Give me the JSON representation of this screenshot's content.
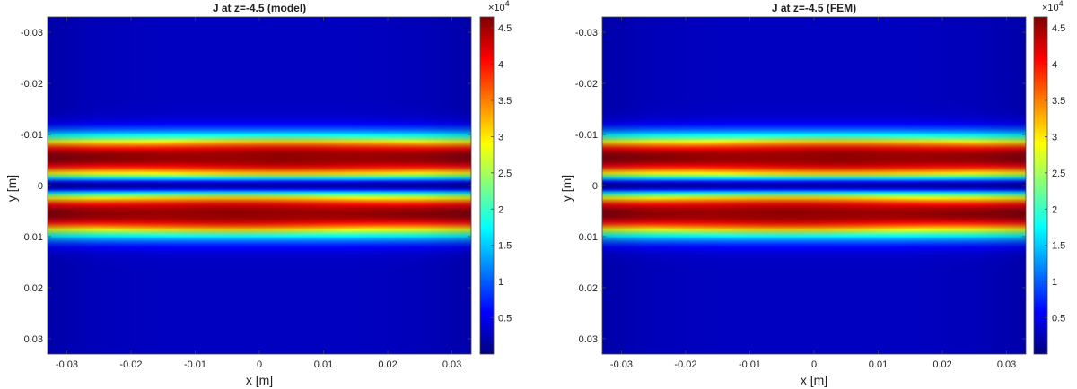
{
  "chart_data": [
    {
      "type": "heatmap",
      "title": "J at z=-4.5 (model)",
      "xlabel": "x [m]",
      "ylabel": "y [m]",
      "xlim": [
        -0.033,
        0.033
      ],
      "ylim": [
        -0.033,
        0.033
      ],
      "y_reversed": true,
      "x_ticks": [
        -0.03,
        -0.02,
        -0.01,
        0,
        0.01,
        0.02,
        0.03
      ],
      "x_tick_labels": [
        "-0.03",
        "-0.02",
        "-0.01",
        "0",
        "0.01",
        "0.02",
        "0.03"
      ],
      "y_ticks": [
        -0.03,
        -0.02,
        -0.01,
        0,
        0.01,
        0.02,
        0.03
      ],
      "y_tick_labels": [
        "-0.03",
        "-0.02",
        "-0.01",
        "0",
        "0.01",
        "0.02",
        "0.03"
      ],
      "colormap": "jet",
      "clim": [
        0,
        46500
      ],
      "colorbar_ticks": [
        5000,
        10000,
        15000,
        20000,
        25000,
        30000,
        35000,
        40000,
        45000
      ],
      "colorbar_tick_labels": [
        "0.5",
        "1",
        "1.5",
        "2",
        "2.5",
        "3",
        "3.5",
        "4",
        "4.5"
      ],
      "colorbar_multiplier_base": "×10",
      "colorbar_multiplier_exp": "4",
      "band_profile": {
        "peak_value": 46000,
        "peak_y_offset": 0.0055,
        "band_width": 0.0042,
        "center_dip_value": 1500,
        "edge_value": 3000,
        "upper_band_peak_x": 0.004,
        "lower_band_peak_x": -0.004
      }
    },
    {
      "type": "heatmap",
      "title": "J at z=-4.5 (FEM)",
      "xlabel": "x [m]",
      "ylabel": "y [m]",
      "xlim": [
        -0.033,
        0.033
      ],
      "ylim": [
        -0.033,
        0.033
      ],
      "y_reversed": true,
      "x_ticks": [
        -0.03,
        -0.02,
        -0.01,
        0,
        0.01,
        0.02,
        0.03
      ],
      "x_tick_labels": [
        "-0.03",
        "-0.02",
        "-0.01",
        "0",
        "0.01",
        "0.02",
        "0.03"
      ],
      "y_ticks": [
        -0.03,
        -0.02,
        -0.01,
        0,
        0.01,
        0.02,
        0.03
      ],
      "y_tick_labels": [
        "-0.03",
        "-0.02",
        "-0.01",
        "0",
        "0.01",
        "0.02",
        "0.03"
      ],
      "colormap": "jet",
      "clim": [
        0,
        46500
      ],
      "colorbar_ticks": [
        5000,
        10000,
        15000,
        20000,
        25000,
        30000,
        35000,
        40000,
        45000
      ],
      "colorbar_tick_labels": [
        "0.5",
        "1",
        "1.5",
        "2",
        "2.5",
        "3",
        "3.5",
        "4",
        "4.5"
      ],
      "colorbar_multiplier_base": "×10",
      "colorbar_multiplier_exp": "4",
      "band_profile": {
        "peak_value": 46000,
        "peak_y_offset": 0.0055,
        "band_width": 0.0042,
        "center_dip_value": 1500,
        "edge_value": 3000,
        "upper_band_peak_x": 0.004,
        "lower_band_peak_x": -0.004
      }
    }
  ]
}
